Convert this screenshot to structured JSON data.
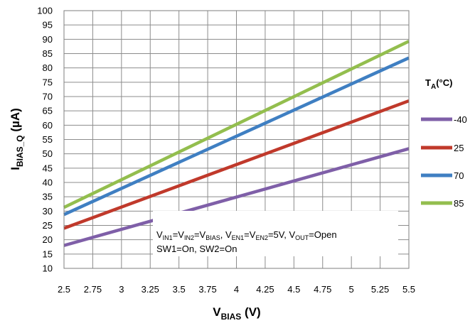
{
  "chart_data": {
    "type": "line",
    "title": "",
    "xlabel": {
      "main": "V",
      "sub": "BIAS",
      "tail": " (V)"
    },
    "ylabel": {
      "main": "I",
      "sub": "BIAS_Q",
      "tail": " (µA)"
    },
    "xlim": [
      2.5,
      5.5
    ],
    "ylim": [
      10,
      100
    ],
    "xticks": [
      "2.5",
      "2.75",
      "3",
      "3.25",
      "3.5",
      "3.75",
      "4",
      "4.25",
      "4.5",
      "4.75",
      "5",
      "5.25",
      "5.5"
    ],
    "yticks": [
      "10",
      "15",
      "20",
      "25",
      "30",
      "35",
      "40",
      "45",
      "50",
      "55",
      "60",
      "65",
      "70",
      "75",
      "80",
      "85",
      "90",
      "95",
      "100"
    ],
    "grid": true,
    "legend_title": {
      "main": "T",
      "sub": "A",
      "tail": "(°C)"
    },
    "legend_position": "right",
    "x": [
      2.5,
      5.5
    ],
    "series": [
      {
        "name": "-40",
        "color": "#7f5fa8",
        "values": [
          18,
          51.8
        ]
      },
      {
        "name": "25",
        "color": "#c0392b",
        "values": [
          24,
          68.5
        ]
      },
      {
        "name": "70",
        "color": "#3f7fc2",
        "values": [
          28.8,
          83.5
        ]
      },
      {
        "name": "85",
        "color": "#93be4e",
        "values": [
          31.3,
          89.3
        ]
      }
    ],
    "annotation": {
      "line1": [
        {
          "t": "V"
        },
        {
          "t": "IN1",
          "sub": true
        },
        {
          "t": "=V"
        },
        {
          "t": "IN2",
          "sub": true
        },
        {
          "t": "=V"
        },
        {
          "t": "BIAS",
          "sub": true
        },
        {
          "t": ", V"
        },
        {
          "t": "EN1",
          "sub": true
        },
        {
          "t": "=V"
        },
        {
          "t": "EN2",
          "sub": true
        },
        {
          "t": "=5V, V"
        },
        {
          "t": "OUT",
          "sub": true
        },
        {
          "t": "=Open"
        }
      ],
      "line2": "SW1=On, SW2=On"
    }
  }
}
